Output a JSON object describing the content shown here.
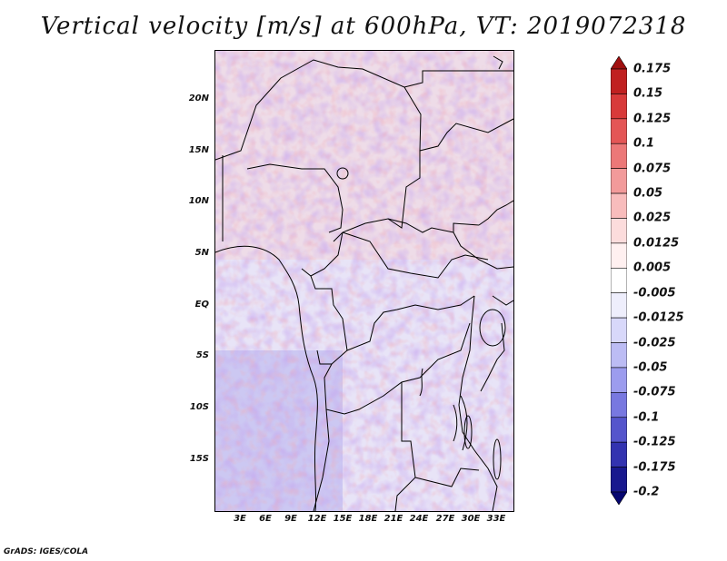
{
  "title": "Vertical velocity [m/s] at 600hPa, VT: 2019072318",
  "footer": "GrADS: IGES/COLA",
  "map": {
    "region": "Central Africa",
    "lat_labels": [
      "20N",
      "15N",
      "10N",
      "5N",
      "EQ",
      "5S",
      "10S",
      "15S"
    ],
    "lon_labels": [
      "3E",
      "6E",
      "9E",
      "12E",
      "15E",
      "18E",
      "21E",
      "24E",
      "27E",
      "30E",
      "33E"
    ],
    "lat_range": [
      -20,
      24.5
    ],
    "lon_range": [
      0,
      35
    ]
  },
  "colorbar": {
    "levels": [
      "0.175",
      "0.15",
      "0.125",
      "0.1",
      "0.075",
      "0.05",
      "0.025",
      "0.0125",
      "0.005",
      "-0.005",
      "-0.0125",
      "-0.025",
      "-0.05",
      "-0.075",
      "-0.1",
      "-0.125",
      "-0.175",
      "-0.2"
    ],
    "colors": [
      "#a01010",
      "#c02020",
      "#d83a3a",
      "#e45656",
      "#ec7878",
      "#f29a9a",
      "#f8bcbc",
      "#fcdcdc",
      "#fff0f0",
      "#ffffff",
      "#eeeefc",
      "#d8d8fa",
      "#bcbcf4",
      "#9c9cee",
      "#7878e0",
      "#5555cc",
      "#3333b0",
      "#18188e",
      "#060670"
    ]
  }
}
